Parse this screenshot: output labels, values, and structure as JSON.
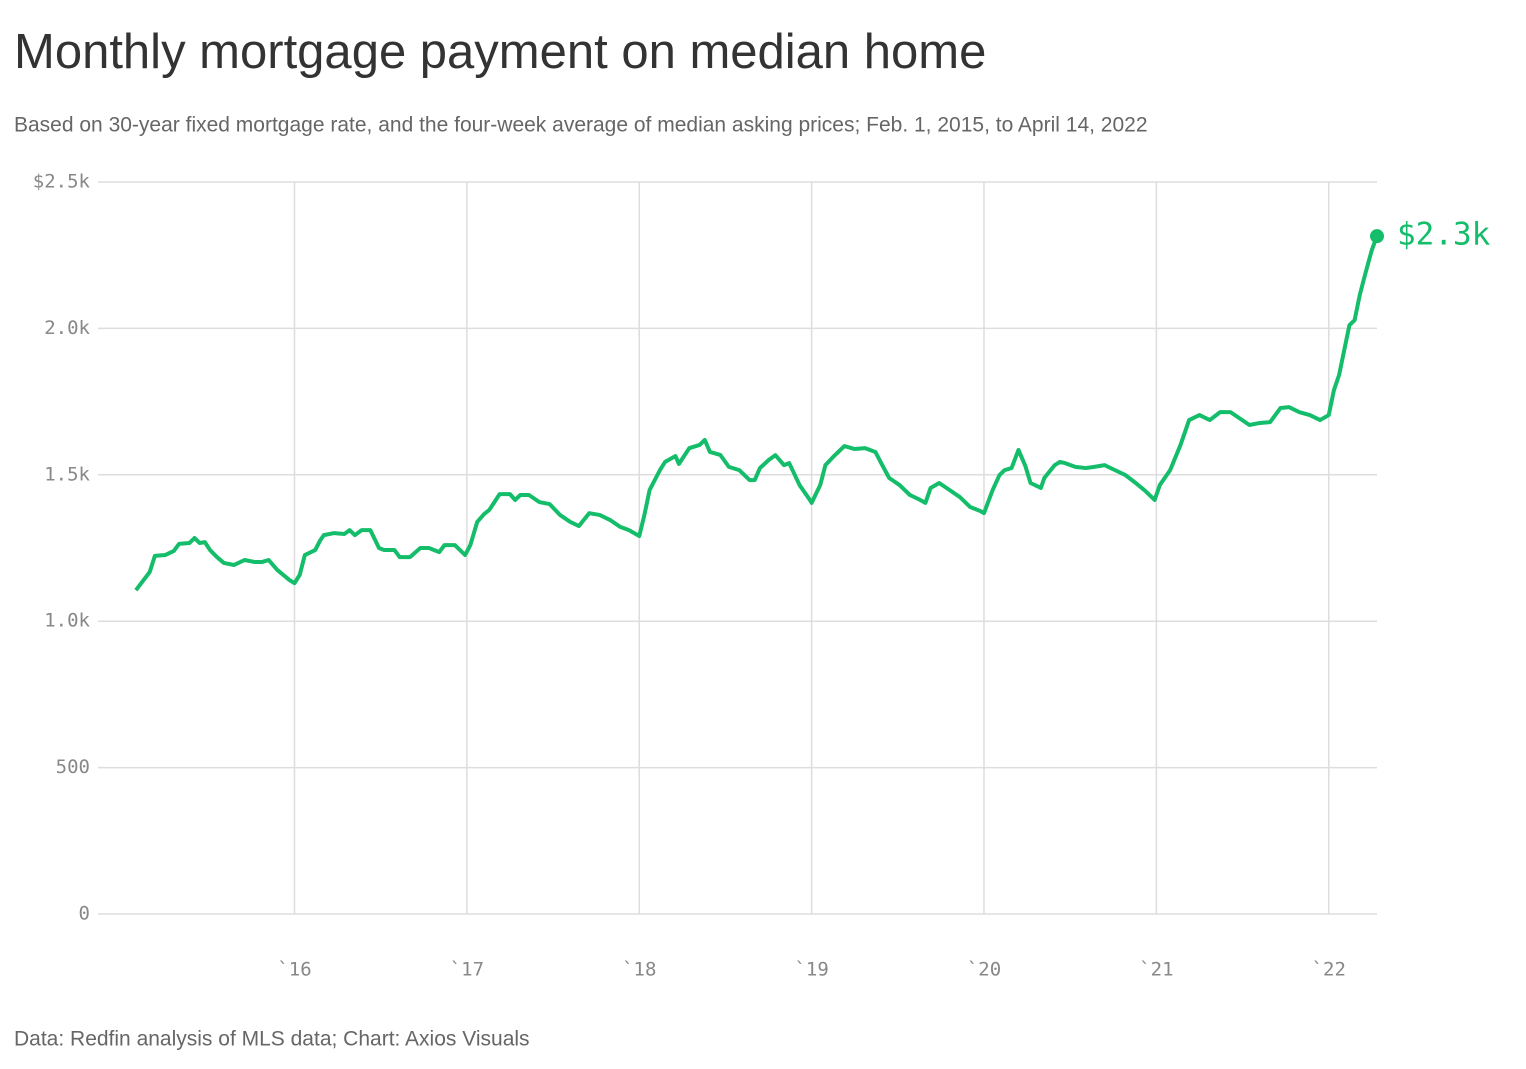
{
  "chart_data": {
    "type": "line",
    "title": "Monthly mortgage payment on median home",
    "subtitle": "Based on 30-year fixed mortgage rate, and the four-week average of median asking prices; Feb. 1, 2015, to April 14, 2022",
    "source": "Data: Redfin analysis of MLS data; Chart: Axios Visuals",
    "color": "#14bd6a",
    "x": [
      2015.08,
      2015.16,
      2015.19,
      2015.25,
      2015.3,
      2015.33,
      2015.39,
      2015.42,
      2015.45,
      2015.48,
      2015.51,
      2015.55,
      2015.59,
      2015.65,
      2015.71,
      2015.77,
      2015.81,
      2015.85,
      2015.9,
      2015.97,
      2016.0,
      2016.03,
      2016.06,
      2016.12,
      2016.15,
      2016.17,
      2016.23,
      2016.29,
      2016.32,
      2016.35,
      2016.39,
      2016.44,
      2016.49,
      2016.52,
      2016.58,
      2016.61,
      2016.67,
      2016.73,
      2016.78,
      2016.84,
      2016.87,
      2016.93,
      2016.99,
      2017.02,
      2017.06,
      2017.1,
      2017.13,
      2017.19,
      2017.25,
      2017.28,
      2017.31,
      2017.36,
      2017.42,
      2017.48,
      2017.54,
      2017.6,
      2017.65,
      2017.71,
      2017.77,
      2017.83,
      2017.89,
      2017.94,
      2018.0,
      2018.03,
      2018.06,
      2018.12,
      2018.15,
      2018.21,
      2018.23,
      2018.29,
      2018.35,
      2018.38,
      2018.41,
      2018.47,
      2018.52,
      2018.58,
      2018.64,
      2018.67,
      2018.7,
      2018.75,
      2018.79,
      2018.84,
      2018.87,
      2018.93,
      2018.99,
      2019.0,
      2019.05,
      2019.08,
      2019.13,
      2019.19,
      2019.25,
      2019.31,
      2019.37,
      2019.4,
      2019.45,
      2019.51,
      2019.57,
      2019.63,
      2019.66,
      2019.69,
      2019.74,
      2019.8,
      2019.86,
      2019.92,
      2019.98,
      2020.0,
      2020.05,
      2020.09,
      2020.12,
      2020.16,
      2020.2,
      2020.24,
      2020.27,
      2020.33,
      2020.35,
      2020.41,
      2020.44,
      2020.47,
      2020.53,
      2020.59,
      2020.64,
      2020.7,
      2020.76,
      2020.82,
      2020.88,
      2020.93,
      2020.99,
      2021.02,
      2021.08,
      2021.14,
      2021.19,
      2021.25,
      2021.31,
      2021.37,
      2021.43,
      2021.48,
      2021.54,
      2021.6,
      2021.66,
      2021.72,
      2021.77,
      2021.83,
      2021.89,
      2021.95,
      2022.0,
      2022.03,
      2022.06,
      2022.09,
      2022.12,
      2022.15,
      2022.18,
      2022.21,
      2022.25,
      2022.28
    ],
    "values": [
      1106,
      1168,
      1223,
      1226,
      1240,
      1264,
      1267,
      1284,
      1267,
      1270,
      1243,
      1219,
      1199,
      1192,
      1209,
      1202,
      1202,
      1209,
      1175,
      1141,
      1130,
      1158,
      1226,
      1243,
      1277,
      1294,
      1301,
      1298,
      1311,
      1294,
      1311,
      1311,
      1250,
      1243,
      1243,
      1219,
      1219,
      1250,
      1250,
      1236,
      1260,
      1260,
      1226,
      1260,
      1339,
      1366,
      1380,
      1434,
      1434,
      1414,
      1431,
      1431,
      1407,
      1400,
      1363,
      1339,
      1325,
      1369,
      1363,
      1346,
      1322,
      1311,
      1291,
      1363,
      1448,
      1516,
      1544,
      1564,
      1537,
      1591,
      1602,
      1619,
      1578,
      1568,
      1527,
      1516,
      1482,
      1482,
      1523,
      1550,
      1567,
      1533,
      1540,
      1465,
      1414,
      1404,
      1465,
      1533,
      1564,
      1598,
      1588,
      1591,
      1578,
      1544,
      1489,
      1465,
      1431,
      1414,
      1404,
      1455,
      1472,
      1448,
      1424,
      1390,
      1376,
      1369,
      1448,
      1499,
      1516,
      1523,
      1585,
      1530,
      1472,
      1455,
      1489,
      1533,
      1544,
      1540,
      1527,
      1523,
      1527,
      1533,
      1516,
      1499,
      1472,
      1448,
      1414,
      1465,
      1516,
      1602,
      1687,
      1704,
      1687,
      1714,
      1714,
      1694,
      1670,
      1677,
      1680,
      1728,
      1731,
      1714,
      1704,
      1687,
      1704,
      1789,
      1841,
      1926,
      2011,
      2028,
      2114,
      2182,
      2268,
      2315
    ],
    "value_labels": [
      null,
      null,
      null,
      null,
      null,
      null,
      null,
      null,
      null,
      null,
      null,
      null,
      null,
      null,
      null,
      null,
      null,
      null,
      null,
      null,
      null,
      null,
      null,
      null,
      null,
      null,
      null,
      null,
      null,
      null,
      null,
      null,
      null,
      null,
      null,
      null,
      null,
      null,
      null,
      null,
      null,
      null,
      null,
      null,
      null,
      null,
      null,
      null,
      null,
      null,
      null,
      null,
      null,
      null,
      null,
      null,
      null,
      null,
      null,
      null,
      null,
      null,
      null,
      null,
      null,
      null,
      null,
      null,
      null,
      null,
      null,
      null,
      null,
      null,
      null,
      null,
      null,
      null,
      null,
      null,
      null,
      null,
      null,
      null,
      null,
      null,
      null,
      null,
      null,
      null,
      null,
      null,
      null,
      null,
      null,
      null,
      null,
      null,
      null,
      null,
      null,
      null,
      null,
      null,
      null,
      null,
      null,
      null,
      null,
      null,
      null,
      null,
      null,
      null,
      null,
      null,
      null,
      null,
      null,
      null,
      null,
      null,
      null,
      null,
      null,
      null,
      null,
      null,
      null,
      null,
      null,
      null,
      null,
      null,
      null,
      null,
      null,
      null,
      null,
      null,
      null,
      null,
      null,
      null,
      null,
      null,
      null,
      null,
      null,
      null,
      null,
      null,
      null,
      "$2.3k"
    ],
    "xlim": [
      2014.86,
      2022.28
    ],
    "xticks": [
      {
        "value": 2016,
        "label": "`16"
      },
      {
        "value": 2017,
        "label": "`17"
      },
      {
        "value": 2018,
        "label": "`18"
      },
      {
        "value": 2019,
        "label": "`19"
      },
      {
        "value": 2020,
        "label": "`20"
      },
      {
        "value": 2021,
        "label": "`21"
      },
      {
        "value": 2022,
        "label": "`22"
      }
    ],
    "ylim": [
      0,
      2500
    ],
    "yticks": [
      0,
      500,
      {
        "value": 1000,
        "label": "1.0k"
      },
      {
        "value": 1500,
        "label": "1.5k"
      },
      {
        "value": 2000,
        "label": "2.0k"
      },
      {
        "value": 2500,
        "label": "$2.5k"
      }
    ],
    "grid": true
  }
}
